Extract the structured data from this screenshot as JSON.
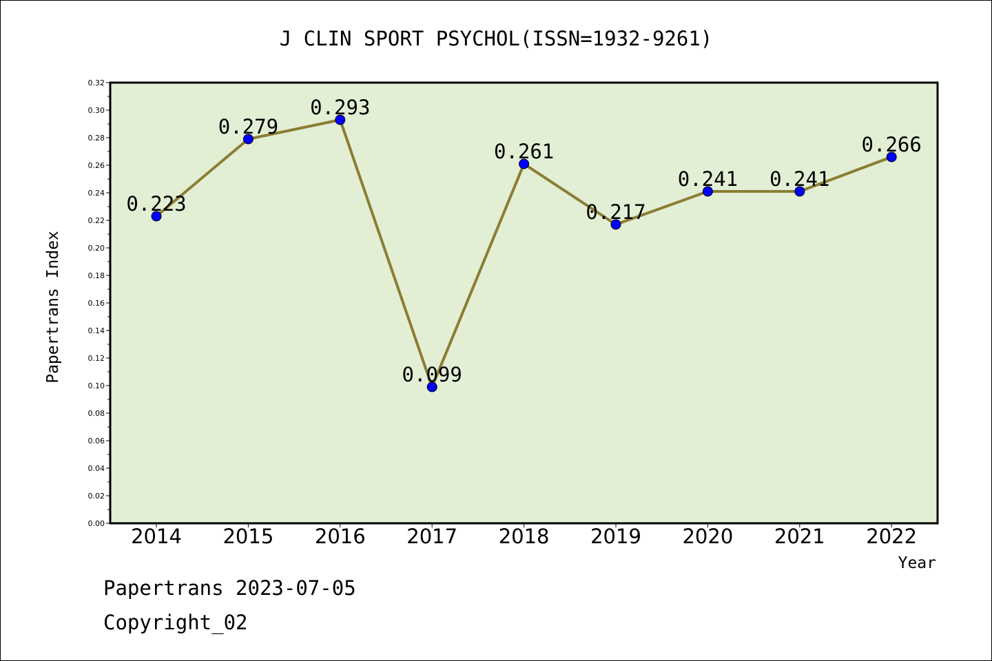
{
  "chart_data": {
    "type": "line",
    "title": "J CLIN SPORT PSYCHOL(ISSN=1932-9261)",
    "xlabel": "Year",
    "ylabel": "Papertrans Index",
    "categories": [
      "2014",
      "2015",
      "2016",
      "2017",
      "2018",
      "2019",
      "2020",
      "2021",
      "2022"
    ],
    "values": [
      0.223,
      0.279,
      0.293,
      0.099,
      0.261,
      0.217,
      0.241,
      0.241,
      0.266
    ],
    "value_labels": [
      "0.223",
      "0.279",
      "0.293",
      "0.099",
      "0.261",
      "0.217",
      "0.241",
      "0.241",
      "0.266"
    ],
    "ylim": [
      0,
      0.32
    ],
    "yticks": [
      "0.00",
      "0.02",
      "0.04",
      "0.06",
      "0.08",
      "0.10",
      "0.12",
      "0.14",
      "0.16",
      "0.18",
      "0.20",
      "0.22",
      "0.24",
      "0.26",
      "0.28",
      "0.30",
      "0.32"
    ],
    "grid": false,
    "colors": {
      "plot_background": "#e2efd5",
      "line": "#8b7d34",
      "marker": "#0000ff"
    }
  },
  "footer": {
    "source": "Papertrans 2023-07-05",
    "copyright": "Copyright_02"
  }
}
